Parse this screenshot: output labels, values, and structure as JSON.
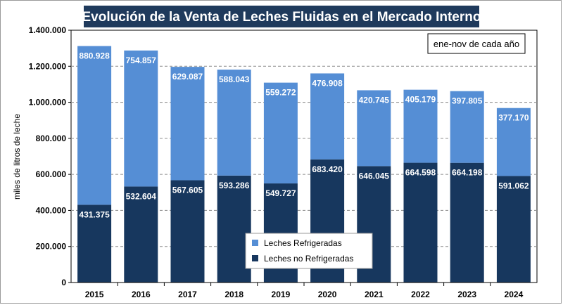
{
  "chart_data": {
    "type": "bar",
    "stacked": true,
    "title": "Evolución de la Venta de Leches Fluidas en el Mercado Interno",
    "note": "ene-nov de cada año",
    "ylabel": "miles de litros de leche",
    "xlabel": "",
    "ylim": [
      0,
      1400000
    ],
    "yticks": [
      0,
      200000,
      400000,
      600000,
      800000,
      1000000,
      1200000,
      1400000
    ],
    "ytick_labels": [
      "0",
      "200.000",
      "400.000",
      "600.000",
      "800.000",
      "1.000.000",
      "1.200.000",
      "1.400.000"
    ],
    "grid": true,
    "legend_position": "bottom-center",
    "categories": [
      "2015",
      "2016",
      "2017",
      "2018",
      "2019",
      "2020",
      "2021",
      "2022",
      "2023",
      "2024"
    ],
    "series": [
      {
        "name": "Leches no Refrigeradas",
        "color": "#17375e",
        "values": [
          431375,
          532604,
          567605,
          593286,
          549727,
          683420,
          646045,
          664598,
          664198,
          591062
        ],
        "labels": [
          "431.375",
          "532.604",
          "567.605",
          "593.286",
          "549.727",
          "683.420",
          "646.045",
          "664.598",
          "664.198",
          "591.062"
        ]
      },
      {
        "name": "Leches Refrigeradas",
        "color": "#558ed5",
        "values": [
          880928,
          754857,
          629087,
          588043,
          559272,
          476908,
          420745,
          405179,
          397805,
          377170
        ],
        "labels": [
          "880.928",
          "754.857",
          "629.087",
          "588.043",
          "559.272",
          "476.908",
          "420.745",
          "405.179",
          "397.805",
          "377.170"
        ]
      }
    ],
    "legend_order": [
      "Leches Refrigeradas",
      "Leches no Refrigeradas"
    ]
  }
}
